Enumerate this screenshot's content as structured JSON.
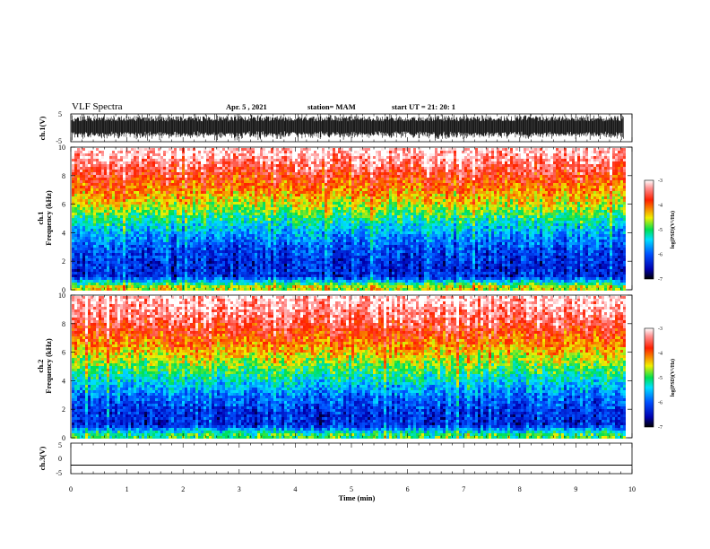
{
  "header": {
    "title": "VLF Spectra",
    "date": "Apr. 5 , 2021",
    "station": "station= MAM",
    "start": "start UT =  21: 20: 1"
  },
  "chart_data": [
    {
      "type": "line",
      "panel": "ch.1 waveform",
      "ylabel": "ch.1(V)",
      "ylim": [
        -5,
        5
      ],
      "yticks": [
        "5",
        "-5"
      ],
      "xlim": [
        0,
        10
      ],
      "note": "dense waveform, amplitude fills most of the range"
    },
    {
      "type": "heatmap",
      "panel": "ch.1 spectrogram",
      "ylabel": "ch.1 Frequency (kHz)",
      "ylim": [
        0,
        10
      ],
      "yticks": [
        "0",
        "2",
        "4",
        "6",
        "8",
        "10"
      ],
      "xlim": [
        0,
        9.85
      ],
      "colorbar": {
        "label": "log(PSD)(V²/Hz)",
        "range": [
          -7,
          -3
        ],
        "ticks": [
          "-3",
          "-4",
          "-5",
          "-6",
          "-7"
        ]
      },
      "profile_log_psd_by_freq": [
        {
          "f": 0.3,
          "v": -4.6
        },
        {
          "f": 1,
          "v": -6.3
        },
        {
          "f": 2,
          "v": -6.3
        },
        {
          "f": 3,
          "v": -6.1
        },
        {
          "f": 4,
          "v": -5.7
        },
        {
          "f": 5,
          "v": -5.2
        },
        {
          "f": 6,
          "v": -4.6
        },
        {
          "f": 7,
          "v": -4.2
        },
        {
          "f": 8,
          "v": -3.8
        },
        {
          "f": 9,
          "v": -3.4
        },
        {
          "f": 10,
          "v": -3.1
        }
      ]
    },
    {
      "type": "heatmap",
      "panel": "ch.2 spectrogram",
      "ylabel": "ch.2 Frequency (kHz)",
      "ylim": [
        0,
        10
      ],
      "yticks": [
        "0",
        "2",
        "4",
        "6",
        "8",
        "10"
      ],
      "xlim": [
        0,
        9.85
      ],
      "colorbar": {
        "label": "log(PSD)(V²/Hz)",
        "range": [
          -7,
          -3
        ],
        "ticks": [
          "-3",
          "-4",
          "-5",
          "-6",
          "-7"
        ]
      },
      "profile_log_psd_by_freq": [
        {
          "f": 0.3,
          "v": -5.0
        },
        {
          "f": 1,
          "v": -6.3
        },
        {
          "f": 2,
          "v": -6.2
        },
        {
          "f": 3,
          "v": -5.9
        },
        {
          "f": 4,
          "v": -5.4
        },
        {
          "f": 5,
          "v": -4.9
        },
        {
          "f": 6,
          "v": -4.4
        },
        {
          "f": 7,
          "v": -4.0
        },
        {
          "f": 8,
          "v": -3.6
        },
        {
          "f": 9,
          "v": -3.3
        },
        {
          "f": 10,
          "v": -3.1
        }
      ]
    },
    {
      "type": "line",
      "panel": "ch.3 waveform",
      "ylabel": "ch.3(V)",
      "ylim": [
        -5,
        5
      ],
      "yticks": [
        "5",
        "0",
        "-5"
      ],
      "xlim": [
        0,
        10
      ],
      "flat_value": -2.2
    }
  ],
  "xaxis": {
    "label": "Time (min)",
    "ticks": [
      "0",
      "1",
      "2",
      "3",
      "4",
      "5",
      "6",
      "7",
      "8",
      "9",
      "10"
    ]
  }
}
